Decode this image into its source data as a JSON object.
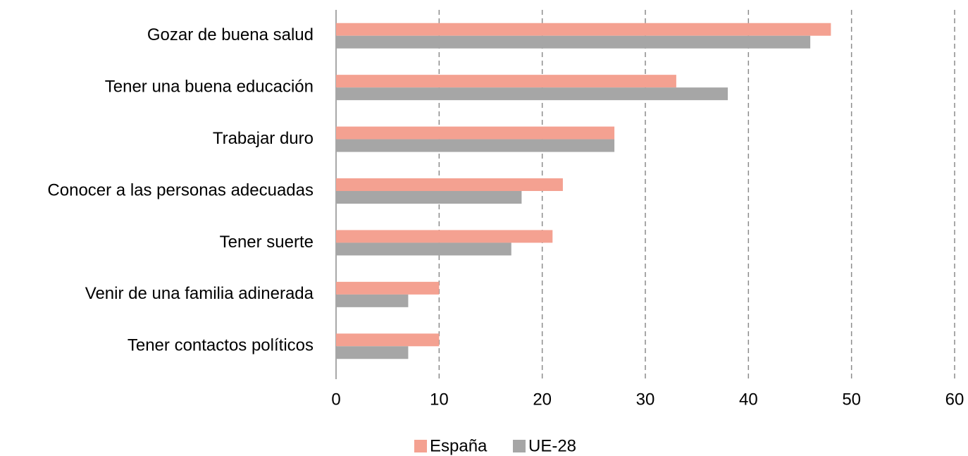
{
  "chart_data": {
    "type": "hbar",
    "categories": [
      "Gozar de buena salud",
      "Tener una buena educación",
      "Trabajar duro",
      "Conocer a las personas adecuadas",
      "Tener suerte",
      "Venir de una familia adinerada",
      "Tener contactos políticos"
    ],
    "series": [
      {
        "name": "España",
        "color": "#f4a191",
        "values": [
          48,
          33,
          27,
          22,
          21,
          10,
          10
        ]
      },
      {
        "name": "UE-28",
        "color": "#a6a6a6",
        "values": [
          46,
          38,
          27,
          18,
          17,
          7,
          7
        ]
      }
    ],
    "xlim": [
      0,
      60
    ],
    "xticks": [
      0,
      10,
      20,
      30,
      40,
      50,
      60
    ],
    "grid": true,
    "legend": "bottom"
  }
}
